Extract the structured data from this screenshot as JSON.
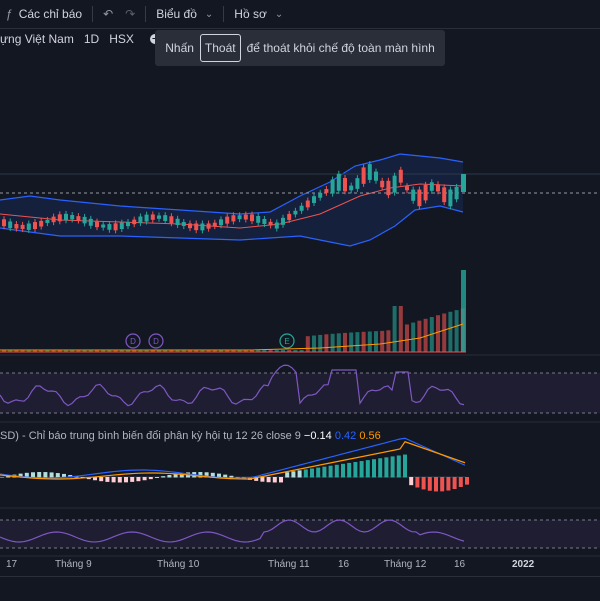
{
  "toolbar": {
    "indicators_label": "Các chỉ báo",
    "chart_menu_label": "Biểu đồ",
    "profile_menu_label": "Hồ sơ"
  },
  "legend": {
    "symbol_name_partial": "ựng Việt Nam",
    "interval": "1D",
    "exchange": "HSX"
  },
  "fullscreen_toast": {
    "prefix": "Nhấn",
    "key": "Thoát",
    "suffix": "để thoát khỏi chế độ toàn màn hình"
  },
  "macd": {
    "label": "SD) - Chỉ báo trung bình biến đổi phân kỳ hội tụ 12 26 close 9",
    "value_histogram": "−0.14",
    "value_macd": "0.42",
    "value_signal": "0.56",
    "color_histogram": "#ffffff",
    "color_macd": "#2962ff",
    "color_signal": "#ff9800"
  },
  "time_axis": [
    {
      "label": "17",
      "bold": false
    },
    {
      "label": "Tháng 9",
      "bold": false
    },
    {
      "label": "Tháng 10",
      "bold": false
    },
    {
      "label": "Tháng 11",
      "bold": false
    },
    {
      "label": "16",
      "bold": false
    },
    {
      "label": "Tháng 12",
      "bold": false
    },
    {
      "label": "16",
      "bold": false
    },
    {
      "label": "2022",
      "bold": true
    }
  ],
  "event_markers": [
    "D",
    "D",
    "E"
  ],
  "colors": {
    "background": "#131722",
    "up": "#26a69a",
    "down": "#ef5350",
    "bollinger": "#2962ff",
    "ma": "#ef5350",
    "rsi": "#7e57c2",
    "volume_ma": "#ff9800"
  }
}
